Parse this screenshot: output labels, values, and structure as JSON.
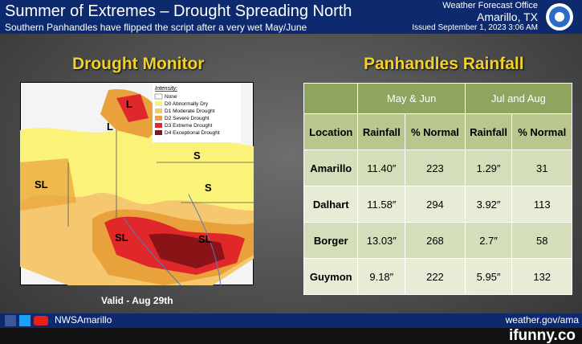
{
  "header": {
    "title": "Summer of Extremes – Drought Spreading North",
    "subtitle": "Southern Panhandles have flipped the script after a very wet May/June",
    "office": "Weather Forecast Office",
    "location": "Amarillo, TX",
    "issued": "Issued September 1, 2023 3:06 AM"
  },
  "map": {
    "title": "Drought Monitor",
    "valid": "Valid - Aug 29th",
    "legend": {
      "heading": "Intensity:",
      "items": [
        "None",
        "D0 Abnormally Dry",
        "D1 Moderate Drought",
        "D2 Severe Drought",
        "D3 Extreme Drought",
        "D4 Exceptional Drought"
      ]
    },
    "labels": [
      "L",
      "L",
      "S",
      "SL",
      "S",
      "SL",
      "SL"
    ]
  },
  "table": {
    "title": "Panhandles Rainfall",
    "groups": [
      "May & Jun",
      "Jul and Aug"
    ],
    "columns": [
      "Location",
      "Rainfall",
      "% Normal",
      "Rainfall",
      "% Normal"
    ],
    "rows": [
      [
        "Amarillo",
        "11.40″",
        223,
        "1.29″",
        31
      ],
      [
        "Dalhart",
        "11.58″",
        294,
        "3.92″",
        113
      ],
      [
        "Borger",
        "13.03″",
        268,
        "2.7″",
        58
      ],
      [
        "Guymon",
        "9.18″",
        222,
        "5.95″",
        132
      ]
    ]
  },
  "footer": {
    "handle": "NWSAmarillo",
    "website": "weather.gov/ama",
    "watermark": "ifunny.co"
  }
}
